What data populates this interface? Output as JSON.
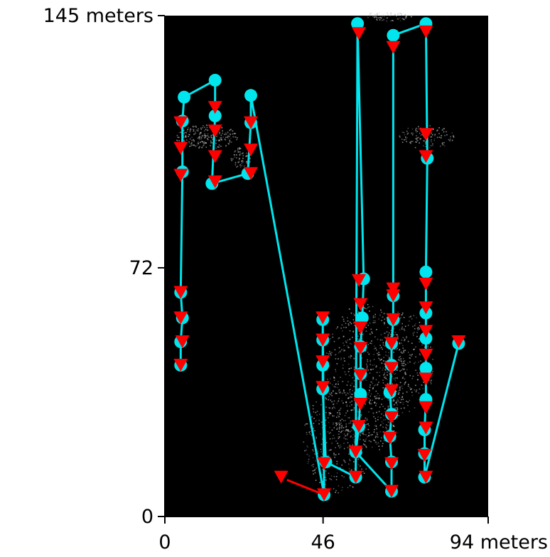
{
  "chart_data": {
    "type": "scatter",
    "x_ticks": [
      {
        "value": 0,
        "label": "0"
      },
      {
        "value": 46,
        "label": "46"
      },
      {
        "value": 94,
        "label": "94 meters"
      }
    ],
    "y_ticks": [
      {
        "value": 0,
        "label": "0"
      },
      {
        "value": 72,
        "label": "72"
      },
      {
        "value": 145,
        "label": "145 meters"
      }
    ],
    "xlim": [
      0,
      94
    ],
    "ylim": [
      0,
      145
    ],
    "plot_area_xlim": [
      0,
      46
    ],
    "background": "#000000",
    "colors": {
      "path": "#00e5ee",
      "marker": "#ff0000",
      "point_cloud": "#bfbfbf"
    },
    "grid": false,
    "path": [
      [
        4.6,
        43.8
      ],
      [
        4.6,
        50.6
      ],
      [
        5.1,
        57.5
      ],
      [
        4.6,
        64.9
      ],
      [
        5.1,
        99.8
      ],
      [
        5.1,
        114.5
      ],
      [
        5.6,
        121.4
      ],
      [
        14.6,
        126.3
      ],
      [
        14.6,
        116.0
      ],
      [
        13.7,
        96.4
      ],
      [
        24.1,
        99.3
      ],
      [
        25.0,
        114.0
      ],
      [
        25.0,
        121.9
      ],
      [
        46.3,
        6.3
      ],
      [
        45.9,
        57.0
      ],
      [
        45.9,
        51.1
      ],
      [
        45.9,
        43.8
      ],
      [
        45.9,
        36.9
      ],
      [
        46.8,
        15.8
      ],
      [
        55.5,
        11.4
      ],
      [
        56.0,
        142.7
      ],
      [
        57.8,
        68.8
      ],
      [
        57.4,
        57.5
      ],
      [
        56.9,
        49.2
      ],
      [
        56.9,
        41.3
      ],
      [
        56.9,
        35.4
      ],
      [
        56.4,
        26.1
      ],
      [
        55.5,
        18.7
      ],
      [
        65.9,
        7.3
      ],
      [
        65.9,
        15.8
      ],
      [
        65.4,
        23.2
      ],
      [
        65.9,
        29.6
      ],
      [
        65.4,
        35.9
      ],
      [
        65.9,
        43.8
      ],
      [
        65.9,
        50.1
      ],
      [
        66.4,
        57.0
      ],
      [
        66.4,
        63.9
      ],
      [
        66.4,
        139.3
      ],
      [
        75.9,
        142.7
      ],
      [
        76.3,
        103.7
      ],
      [
        75.9,
        70.8
      ],
      [
        75.9,
        58.9
      ],
      [
        75.9,
        51.6
      ],
      [
        75.9,
        42.9
      ],
      [
        75.9,
        33.9
      ],
      [
        75.5,
        25.1
      ],
      [
        75.5,
        18.2
      ],
      [
        75.5,
        11.4
      ],
      [
        85.4,
        50.1
      ]
    ],
    "markers": [
      [
        4.6,
        64.9
      ],
      [
        4.6,
        57.5
      ],
      [
        5.1,
        50.6
      ],
      [
        4.6,
        43.8
      ],
      [
        4.6,
        114.0
      ],
      [
        4.6,
        106.6
      ],
      [
        4.6,
        98.8
      ],
      [
        14.6,
        118.4
      ],
      [
        14.6,
        111.6
      ],
      [
        14.6,
        104.2
      ],
      [
        14.6,
        96.9
      ],
      [
        25.0,
        114.0
      ],
      [
        25.0,
        106.1
      ],
      [
        25.0,
        99.3
      ],
      [
        46.3,
        6.3
      ],
      [
        46.3,
        15.3
      ],
      [
        45.9,
        37.4
      ],
      [
        45.9,
        44.8
      ],
      [
        45.9,
        51.1
      ],
      [
        45.9,
        57.5
      ],
      [
        55.5,
        11.4
      ],
      [
        55.5,
        18.7
      ],
      [
        56.4,
        26.1
      ],
      [
        56.9,
        32.5
      ],
      [
        56.9,
        40.8
      ],
      [
        56.9,
        48.7
      ],
      [
        56.9,
        54.6
      ],
      [
        56.9,
        61.4
      ],
      [
        56.4,
        68.3
      ],
      [
        56.4,
        139.8
      ],
      [
        65.9,
        7.3
      ],
      [
        65.9,
        15.3
      ],
      [
        65.4,
        22.7
      ],
      [
        65.9,
        28.6
      ],
      [
        65.9,
        36.4
      ],
      [
        65.9,
        42.9
      ],
      [
        65.9,
        50.1
      ],
      [
        66.4,
        57.0
      ],
      [
        66.4,
        63.9
      ],
      [
        66.4,
        65.9
      ],
      [
        66.4,
        135.8
      ],
      [
        75.9,
        11.4
      ],
      [
        75.5,
        17.7
      ],
      [
        75.9,
        25.6
      ],
      [
        75.9,
        31.5
      ],
      [
        75.9,
        39.8
      ],
      [
        75.9,
        46.7
      ],
      [
        75.9,
        53.6
      ],
      [
        75.9,
        60.4
      ],
      [
        75.9,
        67.3
      ],
      [
        75.9,
        104.2
      ],
      [
        75.9,
        110.6
      ],
      [
        75.9,
        140.3
      ],
      [
        85.4,
        50.6
      ],
      [
        33.8,
        11.4
      ]
    ]
  }
}
